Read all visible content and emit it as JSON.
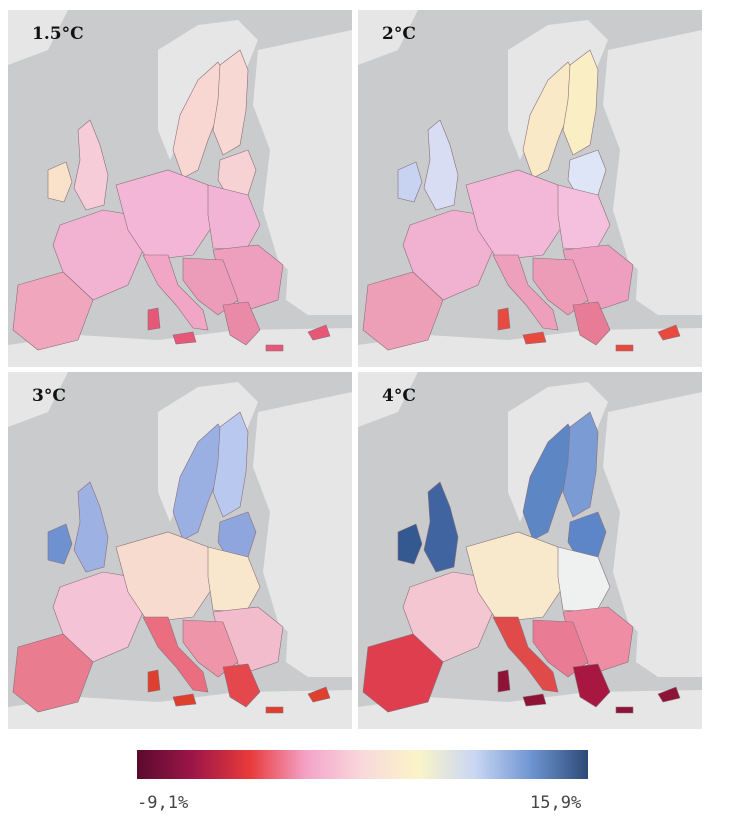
{
  "panels": [
    {
      "label": "1.5°C",
      "regions": {
        "iberia": "#f0a7be",
        "france": "#f2b2d1",
        "central": "#f3b6d6",
        "italy": "#f0a6c4",
        "balkans": "#ec9bb8",
        "greece": "#e98aa8",
        "british": "#f7ccd9",
        "ireland": "#f9e2c9",
        "scandinavia": "#f8d7d3",
        "finland": "#f8d8d2",
        "baltics": "#f6d2d5",
        "poland": "#f2b4d5",
        "eastern": "#ee9fbe",
        "islands": "#e65778"
      }
    },
    {
      "label": "2°C",
      "regions": {
        "iberia": "#ee9fb8",
        "france": "#f1b1d0",
        "central": "#f3b8d8",
        "italy": "#ee9fbb",
        "balkans": "#ed9cb7",
        "greece": "#e87c97",
        "british": "#d9ddf3",
        "ireland": "#c8d3f1",
        "scandinavia": "#f9e9c6",
        "finland": "#faeec5",
        "baltics": "#dde5f7",
        "poland": "#f4c0dd",
        "eastern": "#ee9fc0",
        "islands": "#e84a40"
      }
    },
    {
      "label": "3°C",
      "regions": {
        "iberia": "#ea7c8f",
        "france": "#f4c4d6",
        "central": "#f7dbcf",
        "italy": "#ea6e80",
        "balkans": "#ee95aa",
        "greece": "#e4484d",
        "british": "#9db1e2",
        "ireland": "#6f91cf",
        "scandinavia": "#9ab0e3",
        "finland": "#b9c8ee",
        "baltics": "#8ea6dd",
        "poland": "#f8e7cc",
        "eastern": "#f3bccc",
        "islands": "#df3f2d"
      }
    },
    {
      "label": "4°C",
      "regions": {
        "iberia": "#df3e4e",
        "france": "#f4c6d2",
        "central": "#f8e8cc",
        "italy": "#e04a48",
        "balkans": "#ea7b95",
        "greece": "#a8173f",
        "british": "#3f64a0",
        "ireland": "#345890",
        "scandinavia": "#5c86c4",
        "finland": "#7b9bd5",
        "baltics": "#5d86c8",
        "poland": "#eef1ef",
        "eastern": "#ef8da5",
        "islands": "#8e1437"
      }
    }
  ],
  "legend": {
    "min_label": "-9,1%",
    "max_label": "15,9%",
    "stops": [
      "#5a0a2e",
      "#9e1648",
      "#e83a3a",
      "#f4a3c8",
      "#f9d9dc",
      "#faf4c8",
      "#c8d6f4",
      "#6e94d0",
      "#2c4a78"
    ]
  },
  "map_colors": {
    "sea": "#c9cbcc",
    "non_eu_land": "#e6e6e6",
    "border": "#8a6f7a"
  }
}
